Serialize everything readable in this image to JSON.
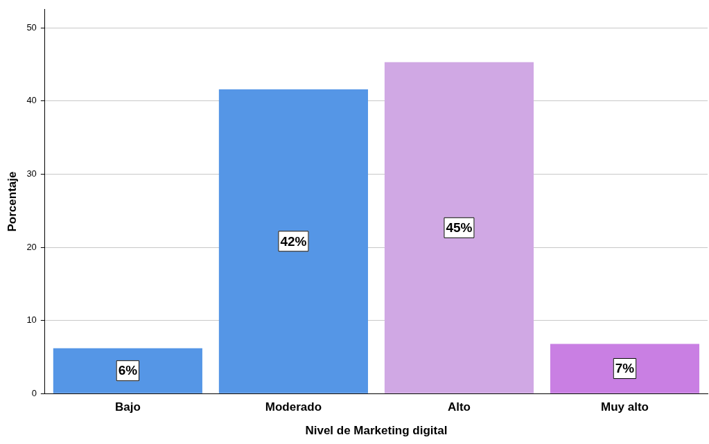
{
  "chart_data": {
    "type": "bar",
    "xlabel": "Nivel de Marketing digital",
    "ylabel": "Porcentaje",
    "categories": [
      "Bajo",
      "Moderado",
      "Alto",
      "Muy alto"
    ],
    "values": [
      6.2,
      41.6,
      45.3,
      6.8
    ],
    "colors": [
      "#5596e6",
      "#5596e6",
      "#d0a8e4",
      "#c97fe3"
    ],
    "value_labels": [
      "6%",
      "42%",
      "45%",
      "7%"
    ],
    "ylim": [
      0,
      52.5
    ],
    "yticks": [
      0,
      10,
      20,
      30,
      40,
      50
    ],
    "grid": "y",
    "legend": false
  }
}
